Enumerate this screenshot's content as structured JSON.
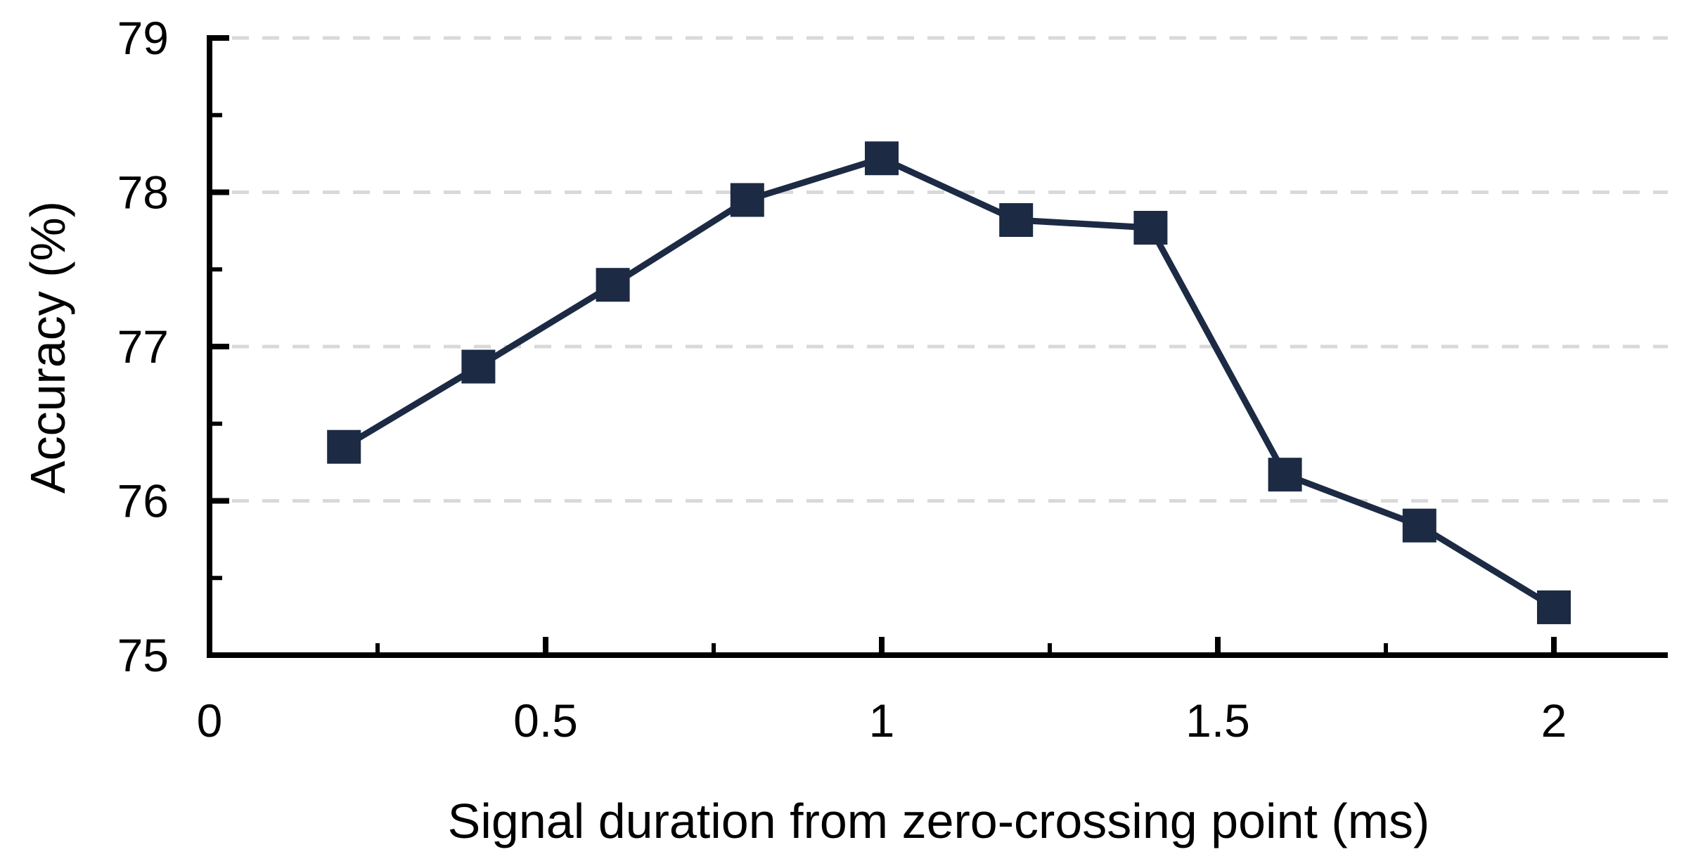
{
  "chart_data": {
    "type": "line",
    "title": "",
    "xlabel": "Signal duration from zero-crossing point (ms)",
    "ylabel": "Accuracy (%)",
    "x": [
      0.2,
      0.4,
      0.6,
      0.8,
      1.0,
      1.2,
      1.4,
      1.6,
      1.8,
      2.0
    ],
    "y": [
      76.35,
      76.87,
      77.4,
      77.95,
      78.22,
      77.82,
      77.77,
      76.17,
      75.84,
      75.31
    ],
    "series": [
      {
        "name": "Accuracy",
        "values": [
          76.35,
          76.87,
          77.4,
          77.95,
          78.22,
          77.82,
          77.77,
          76.17,
          75.84,
          75.31
        ]
      }
    ],
    "xlim": [
      0,
      2.17
    ],
    "ylim": [
      75,
      79
    ],
    "x_major_ticks": [
      0.5,
      1,
      1.5,
      2
    ],
    "x_minor_ticks": [
      0.25,
      0.75,
      1.25,
      1.75
    ],
    "y_major_ticks": [
      76,
      77,
      78,
      79
    ],
    "y_minor_ticks": [
      75.5,
      76.5,
      77.5,
      78.5
    ],
    "x_tick_labels": [
      {
        "value": 0,
        "label": "0"
      },
      {
        "value": 0.5,
        "label": "0.5"
      },
      {
        "value": 1,
        "label": "1"
      },
      {
        "value": 1.5,
        "label": "1.5"
      },
      {
        "value": 2,
        "label": "2"
      }
    ],
    "y_tick_labels": [
      {
        "value": 75,
        "label": "75"
      },
      {
        "value": 76,
        "label": "76"
      },
      {
        "value": 77,
        "label": "77"
      },
      {
        "value": 78,
        "label": "78"
      },
      {
        "value": 79,
        "label": "79"
      }
    ],
    "gridline_values": [
      76,
      77,
      78,
      79
    ],
    "grid": "horizontal-dashed",
    "legend_position": "none",
    "marker": "square",
    "colors": {
      "line": "#1c2a44",
      "marker": "#1c2a44",
      "grid": "#d9d9d9",
      "axis": "#000000",
      "text": "#000000",
      "background": "#ffffff"
    }
  }
}
